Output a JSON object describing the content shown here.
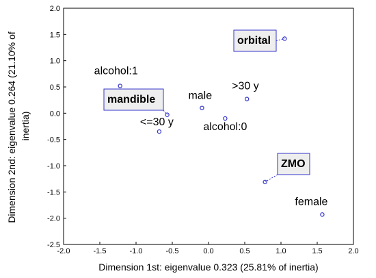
{
  "chart_data": {
    "type": "scatter",
    "title": "",
    "xlabel": "Dimension 1st: eigenvalue 0.323 (25.81% of inertia)",
    "ylabel_lines": [
      "Dimension 2nd: eigenvalue 0.264 (21.10% of",
      "inertia)"
    ],
    "xlim": [
      -2.0,
      2.0
    ],
    "ylim": [
      -2.5,
      2.0
    ],
    "xticks": [
      "-2.0",
      "-1.5",
      "-1.0",
      "-0.5",
      "0.0",
      "0.5",
      "1.0",
      "1.5",
      "2.0"
    ],
    "yticks": [
      "2.0",
      "1.5",
      "1.0",
      "0.5",
      "0.0",
      "-0.5",
      "-1.0",
      "-1.5",
      "-2.0",
      "-2.5"
    ],
    "grid": false,
    "point_color": "#3333cc",
    "points": [
      {
        "label": "alcohol:1",
        "x": -1.22,
        "y": 0.52
      },
      {
        "label": "male",
        "x": -0.09,
        "y": 0.1
      },
      {
        "label": ">30 y",
        "x": 0.53,
        "y": 0.27
      },
      {
        "label": "alcohol:0",
        "x": 0.23,
        "y": -0.1
      },
      {
        "label": "<=30 y",
        "x": -0.68,
        "y": -0.35
      },
      {
        "label": "female",
        "x": 1.57,
        "y": -1.93
      }
    ],
    "supplementary": [
      {
        "label": "orbital",
        "x": 1.05,
        "y": 1.42
      },
      {
        "label": "mandible",
        "x": -0.57,
        "y": -0.03
      },
      {
        "label": "ZMO",
        "x": 0.78,
        "y": -1.31
      }
    ]
  }
}
